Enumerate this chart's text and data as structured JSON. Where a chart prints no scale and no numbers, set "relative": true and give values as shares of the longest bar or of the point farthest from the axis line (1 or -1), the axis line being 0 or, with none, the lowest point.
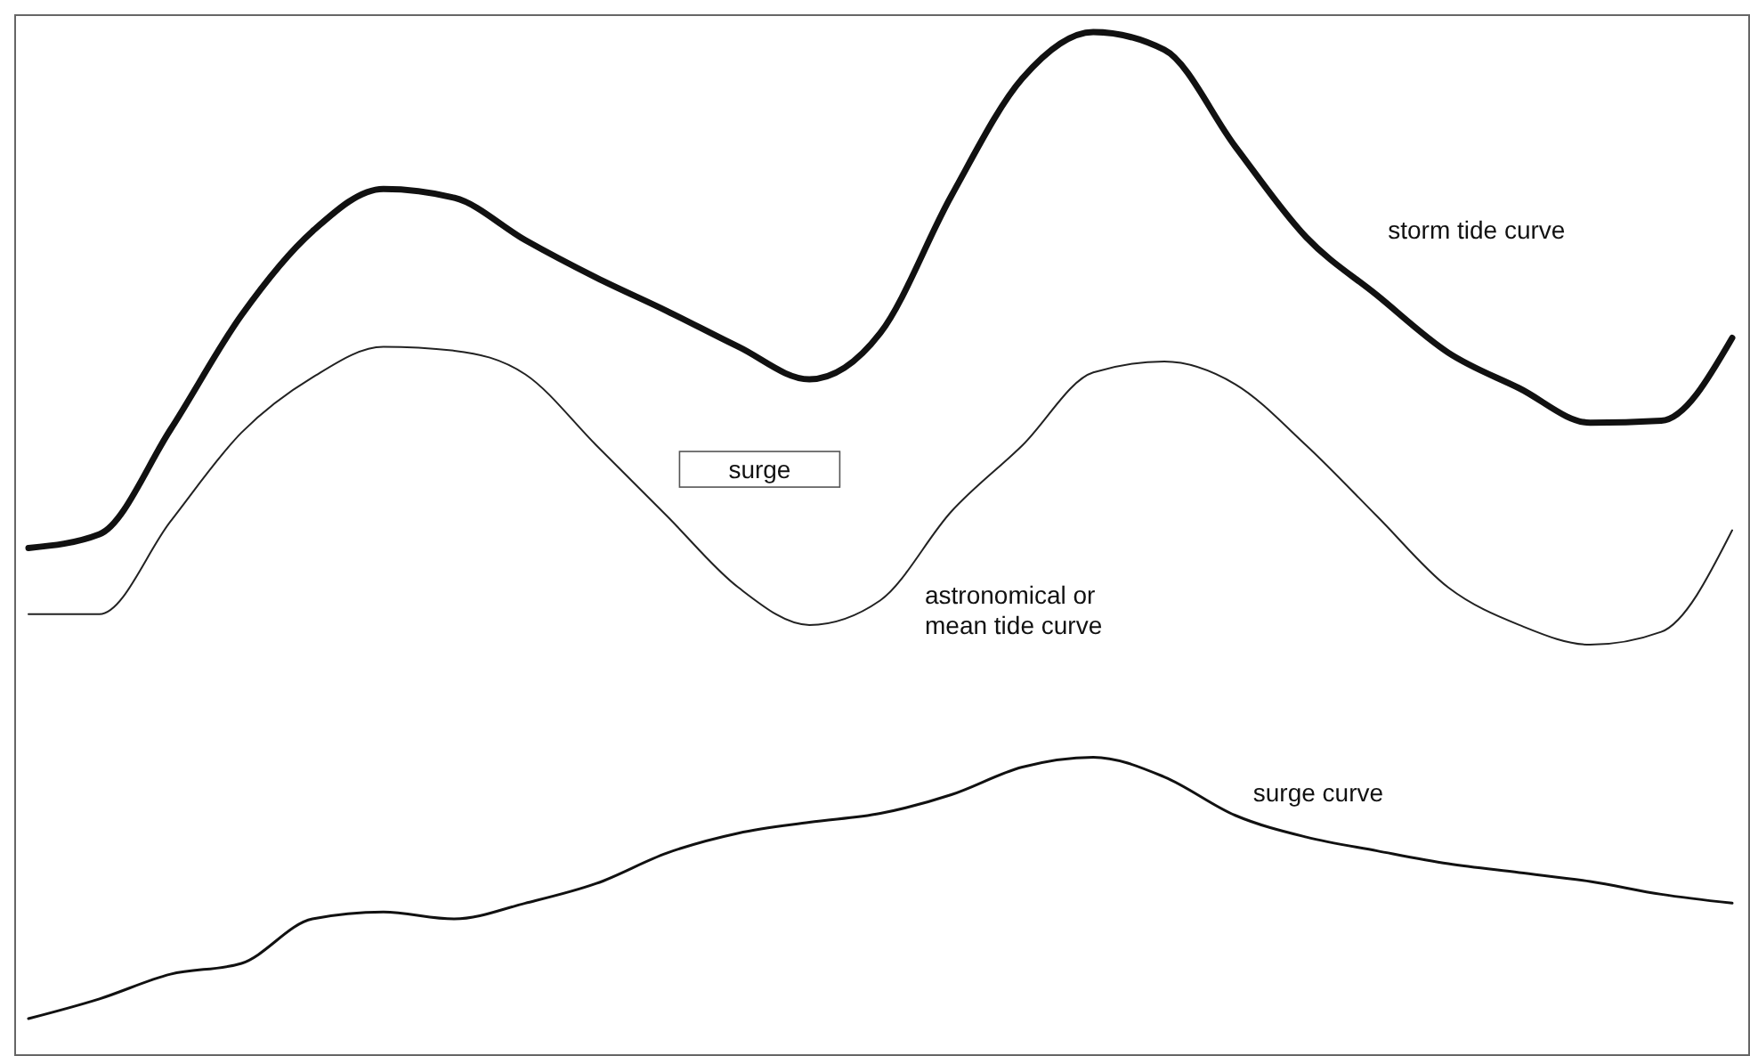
{
  "chart_data": {
    "type": "line",
    "relative": true,
    "categories": [
      null,
      null,
      null,
      null,
      null,
      null,
      null,
      null,
      null,
      null,
      null,
      null,
      null,
      null,
      null,
      null,
      null,
      null,
      null,
      null,
      null,
      null,
      null,
      null,
      null
    ],
    "series": [
      {
        "name": "storm tide curve",
        "color": "#111111",
        "values": [
          0.477,
          0.491,
          0.597,
          0.713,
          0.798,
          0.841,
          0.832,
          0.789,
          0.751,
          0.717,
          0.681,
          0.648,
          0.695,
          0.834,
          0.953,
          1,
          0.982,
          0.884,
          0.792,
          0.733,
          0.675,
          0.639,
          0.604,
          0.606,
          0.69
        ]
      },
      {
        "name": "astronomical or mean tide curve",
        "color": "#222222",
        "values": [
          0.41,
          0.41,
          0.504,
          0.594,
          0.65,
          0.681,
          0.677,
          0.653,
          0.581,
          0.509,
          0.437,
          0.399,
          0.424,
          0.514,
          0.581,
          0.655,
          0.666,
          0.643,
          0.581,
          0.509,
          0.437,
          0.399,
          0.379,
          0.392,
          0.495
        ]
      },
      {
        "name": "surge curve",
        "color": "#111111",
        "values": [
          0,
          0.02,
          0.045,
          0.056,
          0.101,
          0.108,
          0.101,
          0.117,
          0.137,
          0.168,
          0.188,
          0.199,
          0.208,
          0.227,
          0.255,
          0.265,
          0.245,
          0.206,
          0.184,
          0.17,
          0.157,
          0.148,
          0.139,
          0.126,
          0.117
        ]
      }
    ],
    "annotations": [
      "surge"
    ]
  }
}
